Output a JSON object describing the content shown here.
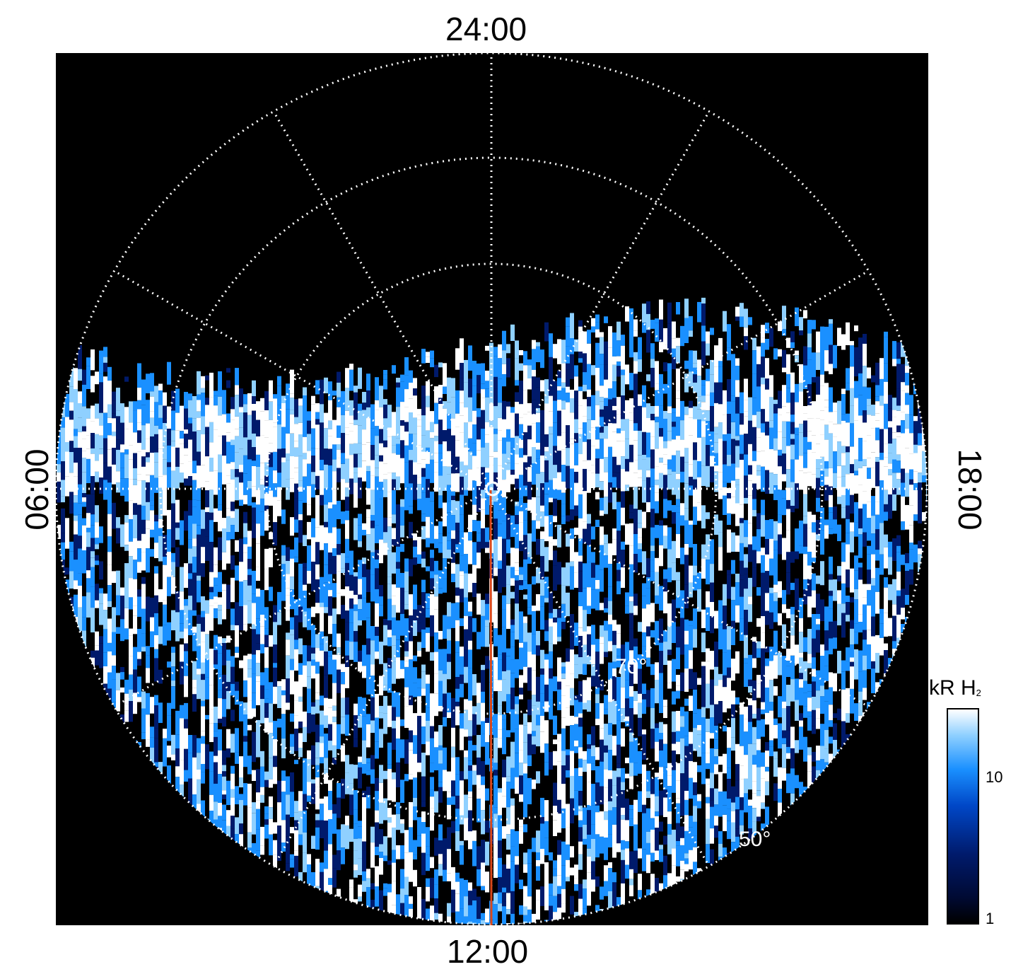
{
  "plot": {
    "time_labels": {
      "top": "24:00",
      "bottom": "12:00",
      "left": "06:00",
      "right": "18:00"
    },
    "latitude_labels": [
      "70°",
      "50°"
    ],
    "colorbar": {
      "title_main": "kR H",
      "title_sub": "2",
      "ticks": [
        "10",
        "1"
      ],
      "scale": "log",
      "colors": [
        "#000000",
        "#001a6b",
        "#0047c7",
        "#1a90ff",
        "#8fd0ff",
        "#ffffff"
      ]
    },
    "background_color": "#000000",
    "grid_color": "#ffffff",
    "meridian_line_color": "#d9471a"
  }
}
